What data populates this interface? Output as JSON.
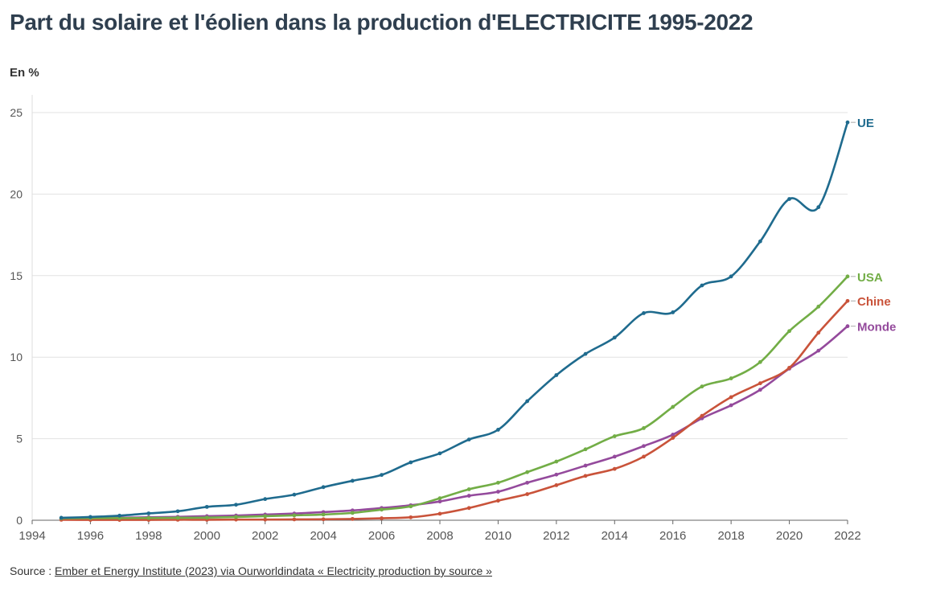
{
  "title": "Part du solaire et l'éolien dans la production d'ELECTRICITE 1995-2022",
  "unit_label": "En %",
  "source": {
    "prefix": "Source :",
    "link_text": "Ember et Energy Institute (2023) via Ourworldindata « Electricity production by source »"
  },
  "chart_data": {
    "type": "line",
    "x": [
      1995,
      1996,
      1997,
      1998,
      1999,
      2000,
      2001,
      2002,
      2003,
      2004,
      2005,
      2006,
      2007,
      2008,
      2009,
      2010,
      2011,
      2012,
      2013,
      2014,
      2015,
      2016,
      2017,
      2018,
      2019,
      2020,
      2021,
      2022
    ],
    "series": [
      {
        "name": "UE",
        "color": "#1f6b8e",
        "values": [
          0.15,
          0.2,
          0.28,
          0.42,
          0.55,
          0.82,
          0.95,
          1.3,
          1.57,
          2.03,
          2.42,
          2.78,
          3.55,
          4.1,
          4.95,
          5.55,
          7.3,
          8.9,
          10.2,
          11.2,
          12.7,
          12.75,
          14.4,
          14.95,
          17.1,
          19.7,
          19.2,
          24.4
        ]
      },
      {
        "name": "USA",
        "color": "#72ad46",
        "values": [
          0.12,
          0.13,
          0.13,
          0.14,
          0.15,
          0.16,
          0.2,
          0.25,
          0.3,
          0.35,
          0.45,
          0.65,
          0.85,
          1.35,
          1.9,
          2.3,
          2.95,
          3.6,
          4.35,
          5.15,
          5.65,
          6.95,
          8.2,
          8.7,
          9.7,
          11.6,
          13.1,
          14.95
        ]
      },
      {
        "name": "Chine",
        "color": "#c9533a",
        "values": [
          0.03,
          0.02,
          0.02,
          0.02,
          0.03,
          0.03,
          0.04,
          0.04,
          0.05,
          0.06,
          0.08,
          0.12,
          0.18,
          0.4,
          0.75,
          1.2,
          1.6,
          2.15,
          2.72,
          3.15,
          3.9,
          5.05,
          6.4,
          7.55,
          8.4,
          9.35,
          11.5,
          13.45
        ]
      },
      {
        "name": "Monde",
        "color": "#944a9c",
        "values": [
          0.12,
          0.14,
          0.16,
          0.18,
          0.21,
          0.25,
          0.29,
          0.35,
          0.41,
          0.5,
          0.6,
          0.75,
          0.92,
          1.15,
          1.5,
          1.75,
          2.3,
          2.8,
          3.35,
          3.9,
          4.55,
          5.25,
          6.25,
          7.05,
          8.0,
          9.3,
          10.4,
          11.9
        ]
      }
    ],
    "xlim": [
      1994,
      2022
    ],
    "ylim": [
      0,
      25
    ],
    "x_ticks": [
      1994,
      1996,
      1998,
      2000,
      2002,
      2004,
      2006,
      2008,
      2010,
      2012,
      2014,
      2016,
      2018,
      2020,
      2022
    ],
    "y_ticks": [
      0,
      5,
      10,
      15,
      20,
      25
    ],
    "grid": "horizontal",
    "legend": "inline-right"
  }
}
